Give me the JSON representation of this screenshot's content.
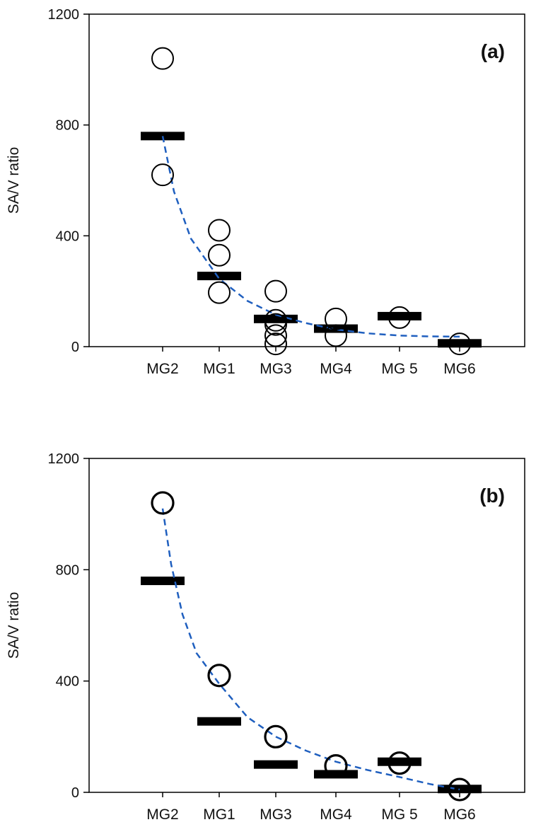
{
  "chart_data": [
    {
      "type": "scatter",
      "panel_label": "(a)",
      "ylabel": "SA/V ratio",
      "xlabel": "",
      "ylim": [
        0,
        1200
      ],
      "yticks": [
        0,
        400,
        800,
        1200
      ],
      "categories": [
        "MG2",
        "MG1",
        "MG3",
        "MG4",
        "MG 5",
        "MG6"
      ],
      "points": [
        {
          "category": "MG2",
          "values": [
            1040,
            620
          ]
        },
        {
          "category": "MG1",
          "values": [
            420,
            330,
            195
          ]
        },
        {
          "category": "MG3",
          "values": [
            200,
            95,
            80,
            40,
            10
          ]
        },
        {
          "category": "MG4",
          "values": [
            100,
            40
          ]
        },
        {
          "category": "MG 5",
          "values": [
            105
          ]
        },
        {
          "category": "MG6",
          "values": [
            10
          ]
        }
      ],
      "means": [
        760,
        255,
        100,
        65,
        110,
        12
      ],
      "fit_curve": {
        "style": "dashed",
        "color": "#1f5fbf",
        "points": [
          [
            1,
            760
          ],
          [
            1.2,
            560
          ],
          [
            1.5,
            390
          ],
          [
            2,
            245
          ],
          [
            2.5,
            165
          ],
          [
            3,
            115
          ],
          [
            3.5,
            85
          ],
          [
            4,
            62
          ],
          [
            4.5,
            48
          ],
          [
            5,
            40
          ],
          [
            5.5,
            37
          ],
          [
            6,
            36
          ]
        ]
      },
      "marker_color": "#000000",
      "grid": false
    },
    {
      "type": "scatter",
      "panel_label": "(b)",
      "ylabel": "SA/V ratio",
      "xlabel": "",
      "ylim": [
        0,
        1200
      ],
      "yticks": [
        0,
        400,
        800,
        1200
      ],
      "categories": [
        "MG2",
        "MG1",
        "MG3",
        "MG4",
        "MG 5",
        "MG6"
      ],
      "points": [
        {
          "category": "MG2",
          "values": [
            1040
          ]
        },
        {
          "category": "MG1",
          "values": [
            420
          ]
        },
        {
          "category": "MG3",
          "values": [
            200
          ]
        },
        {
          "category": "MG4",
          "values": [
            95
          ]
        },
        {
          "category": "MG 5",
          "values": [
            105
          ]
        },
        {
          "category": "MG6",
          "values": [
            10
          ]
        }
      ],
      "means": [
        760,
        255,
        100,
        65,
        110,
        12
      ],
      "fit_curve": {
        "style": "dashed",
        "color": "#1f5fbf",
        "points": [
          [
            1,
            1020
          ],
          [
            1.15,
            820
          ],
          [
            1.35,
            640
          ],
          [
            1.6,
            500
          ],
          [
            2,
            390
          ],
          [
            2.5,
            270
          ],
          [
            3,
            200
          ],
          [
            3.5,
            150
          ],
          [
            4,
            110
          ],
          [
            4.5,
            80
          ],
          [
            5,
            55
          ],
          [
            5.5,
            30
          ],
          [
            6,
            10
          ]
        ]
      },
      "marker_color": "#000000",
      "grid": false
    }
  ]
}
